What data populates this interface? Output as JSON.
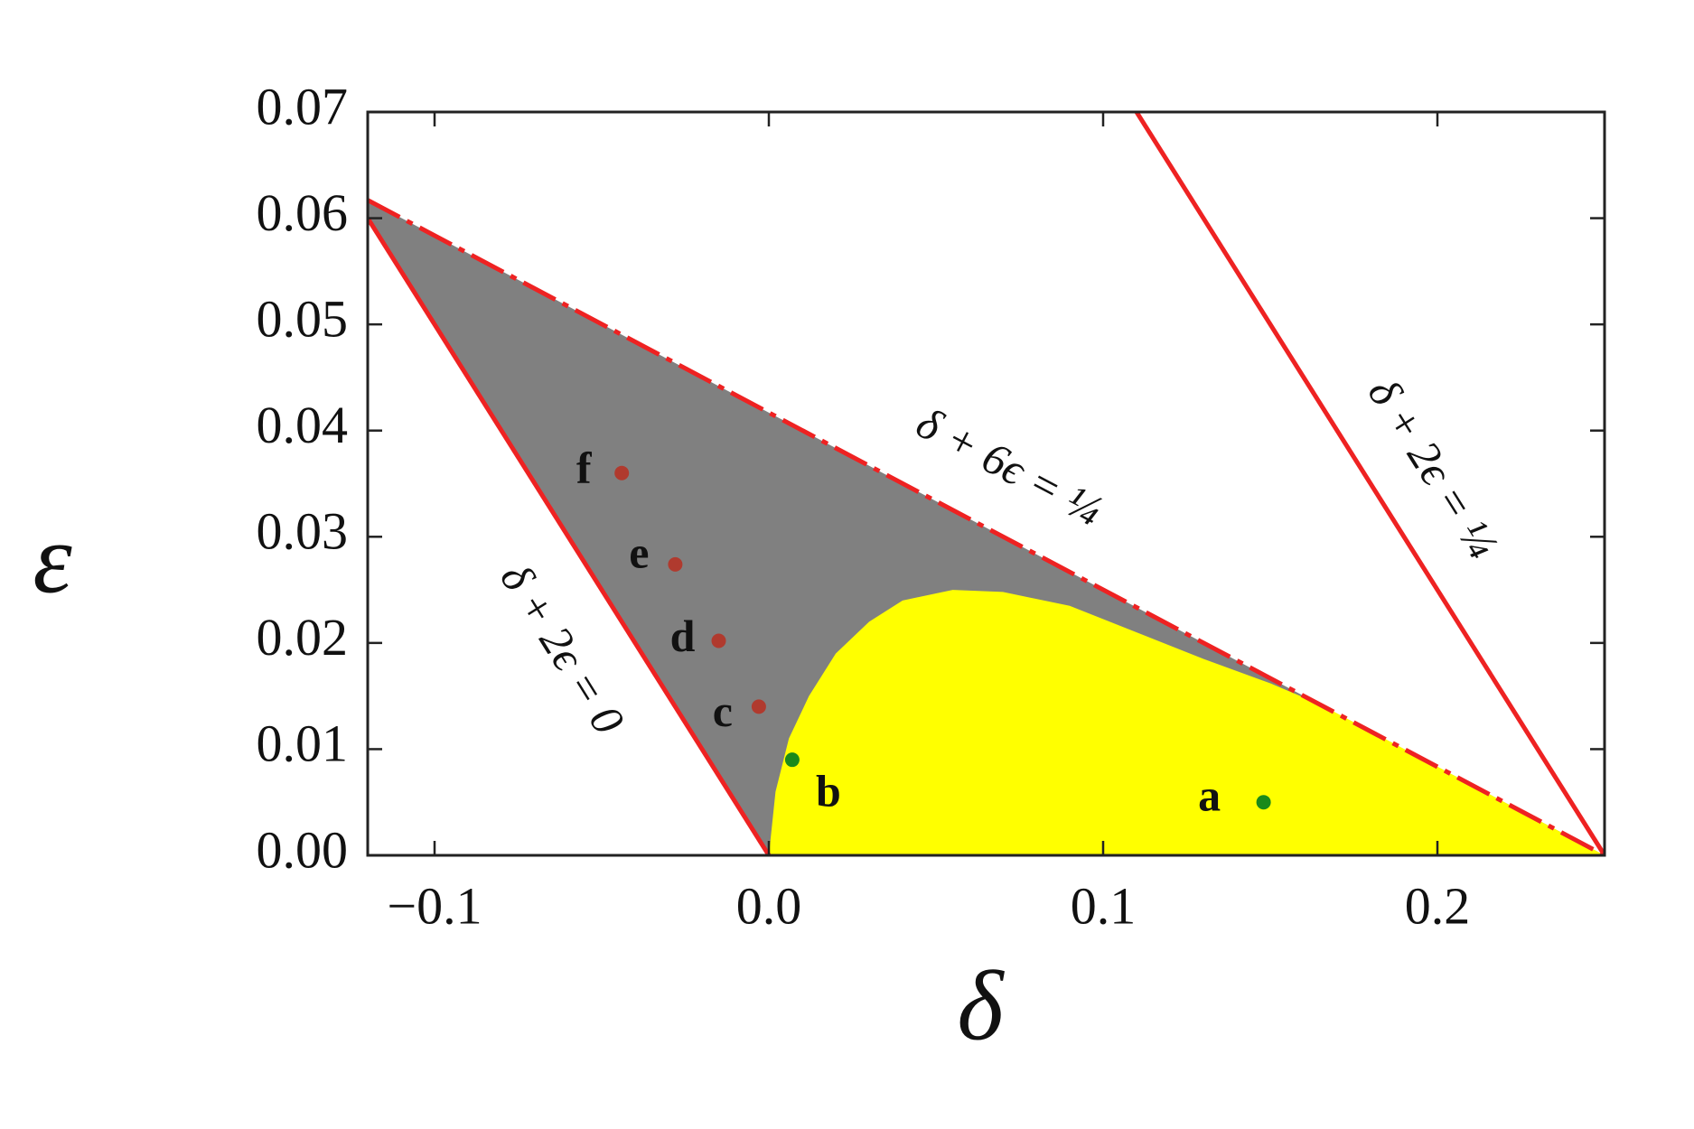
{
  "chart_data": {
    "type": "phase-diagram",
    "x_label": "δ",
    "y_label": "ε",
    "xlim": [
      -0.12,
      0.25
    ],
    "ylim": [
      0,
      0.07
    ],
    "xticks": [
      {
        "value": -0.1,
        "label": "−0.1"
      },
      {
        "value": 0,
        "label": "0.0"
      },
      {
        "value": 0.1,
        "label": "0.1"
      },
      {
        "value": 0.2,
        "label": "0.2"
      }
    ],
    "yticks": [
      {
        "value": 0,
        "label": "0.00"
      },
      {
        "value": 0.01,
        "label": "0.01"
      },
      {
        "value": 0.02,
        "label": "0.02"
      },
      {
        "value": 0.03,
        "label": "0.03"
      },
      {
        "value": 0.04,
        "label": "0.04"
      },
      {
        "value": 0.05,
        "label": "0.05"
      },
      {
        "value": 0.06,
        "label": "0.06"
      },
      {
        "value": 0.07,
        "label": "0.07"
      }
    ],
    "regions": [
      {
        "color": "#808080",
        "x": [
          -0.12,
          -0.12,
          0.25,
          0
        ],
        "y": [
          0.06,
          0.0617,
          0,
          0
        ]
      },
      {
        "color": "#ffff00",
        "x": [
          0,
          0.002,
          0.006,
          0.012,
          0.02,
          0.03,
          0.04,
          0.055,
          0.07,
          0.09,
          0.11,
          0.13,
          0.15,
          0.165,
          0.25
        ],
        "y": [
          0,
          0.006,
          0.011,
          0.015,
          0.019,
          0.022,
          0.024,
          0.025,
          0.0248,
          0.0235,
          0.021,
          0.0185,
          0.0162,
          0.0142,
          0
        ]
      }
    ],
    "series": [
      {
        "name": "δ + 2ϵ = 0",
        "color": "#ee2222",
        "style": "solid",
        "x": [
          -0.12,
          0
        ],
        "values": [
          0.06,
          0
        ]
      },
      {
        "name": "δ + 6ϵ = ¼",
        "color": "#ee2222",
        "style": "dashdot",
        "x": [
          -0.12,
          0.25
        ],
        "values": [
          0.0617,
          0
        ]
      },
      {
        "name": "δ + 2ϵ = ¼",
        "color": "#ee2222",
        "style": "solid",
        "x": [
          0.11,
          0.25
        ],
        "values": [
          0.07,
          0
        ]
      }
    ],
    "points": [
      {
        "label": "a",
        "x": 0.148,
        "y": 0.005,
        "color": "#1a8a1a"
      },
      {
        "label": "b",
        "x": 0.007,
        "y": 0.009,
        "color": "#1a8a1a"
      },
      {
        "label": "c",
        "x": -0.003,
        "y": 0.014,
        "color": "#b03a2e"
      },
      {
        "label": "d",
        "x": -0.015,
        "y": 0.0202,
        "color": "#b03a2e"
      },
      {
        "label": "e",
        "x": -0.028,
        "y": 0.0274,
        "color": "#b03a2e"
      },
      {
        "label": "f",
        "x": -0.044,
        "y": 0.036,
        "color": "#b03a2e"
      }
    ]
  }
}
